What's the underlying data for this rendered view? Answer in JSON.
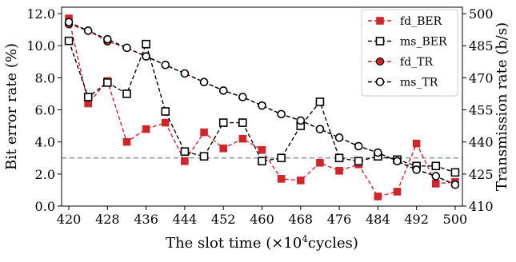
{
  "chart_data": {
    "type": "line",
    "xlabel_main": "The slot time (",
    "xlabel_unit": "×10",
    "xlabel_exp": "4",
    "xlabel_tail": "cycles)",
    "ylabel_left": "Bit error rate (%)",
    "ylabel_right": "Transmission rate (b/s)",
    "x_ticks": [
      420,
      428,
      436,
      444,
      452,
      460,
      468,
      476,
      484,
      492,
      500
    ],
    "y_left_ticks": [
      "0.0",
      "2.0",
      "4.0",
      "6.0",
      "8.0",
      "10.0",
      "12.0"
    ],
    "y_right_ticks": [
      "410",
      "425",
      "440",
      "455",
      "470",
      "485",
      "500"
    ],
    "xlim": [
      418.5,
      501.5
    ],
    "ylim_left": [
      0,
      12.4
    ],
    "ylim_right": [
      410,
      503
    ],
    "reference_line": {
      "axis": "left",
      "y": 3.0,
      "color": "#8a9aa8",
      "style": "dashed"
    },
    "legend_position": "top-right",
    "series": [
      {
        "name": "fd_BER",
        "axis": "left",
        "color": "#d0252b",
        "marker": "filled-square",
        "x": [
          420,
          424,
          428,
          432,
          436,
          440,
          444,
          448,
          452,
          456,
          460,
          464,
          468,
          472,
          476,
          480,
          484,
          488,
          492,
          496,
          500
        ],
        "values": [
          11.7,
          6.4,
          7.8,
          4.0,
          4.8,
          5.2,
          2.8,
          4.6,
          3.6,
          4.2,
          3.5,
          1.7,
          1.6,
          2.7,
          2.2,
          2.6,
          0.6,
          0.9,
          3.9,
          1.4,
          1.5
        ]
      },
      {
        "name": "ms_BER",
        "axis": "left",
        "color": "#000000",
        "marker": "open-square",
        "x": [
          420,
          424,
          428,
          432,
          436,
          440,
          444,
          448,
          452,
          456,
          460,
          464,
          468,
          472,
          476,
          480,
          484,
          488,
          492,
          496,
          500
        ],
        "values": [
          10.3,
          6.8,
          7.7,
          7.0,
          10.1,
          5.9,
          3.4,
          3.1,
          5.2,
          5.2,
          2.8,
          3.0,
          5.0,
          6.5,
          3.0,
          2.8,
          3.1,
          2.9,
          2.5,
          2.5,
          2.1
        ]
      },
      {
        "name": "fd_TR",
        "axis": "right",
        "color": "#d0252b",
        "marker": "filled-circle",
        "x": [
          420,
          424,
          428,
          432,
          436,
          440,
          444,
          448,
          452,
          456,
          460,
          464,
          468,
          472,
          476,
          480,
          484,
          488,
          492,
          496,
          500
        ],
        "values": [
          495,
          492,
          487,
          484,
          480,
          476,
          472,
          468,
          464,
          461,
          457,
          453,
          450,
          446,
          442,
          438,
          435,
          431,
          427,
          424,
          420
        ]
      },
      {
        "name": "ms_TR",
        "axis": "right",
        "color": "#000000",
        "marker": "open-circle",
        "x": [
          420,
          424,
          428,
          432,
          436,
          440,
          444,
          448,
          452,
          456,
          460,
          464,
          468,
          472,
          476,
          480,
          484,
          488,
          492,
          496,
          500
        ],
        "values": [
          496,
          492,
          488,
          484,
          480,
          476,
          472,
          468,
          464,
          461,
          457,
          453,
          450,
          446,
          442,
          438,
          435,
          431,
          427,
          424,
          420
        ]
      }
    ]
  }
}
